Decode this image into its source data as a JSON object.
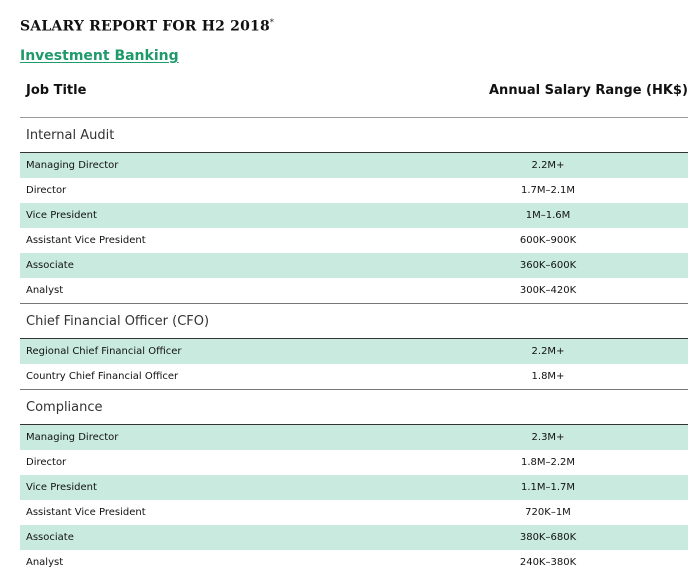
{
  "report": {
    "title": "SALARY REPORT FOR H2 2018",
    "title_mark": "*",
    "section": "Investment Banking"
  },
  "columns": {
    "job": "Job Title",
    "range": "Annual Salary Range (HK$)"
  },
  "colors": {
    "accent": "#1f9a6b",
    "row_shade": "#c9ebdf"
  },
  "groups": [
    {
      "name": "Internal Audit",
      "rows": [
        {
          "title": "Managing Director",
          "range": "2.2M+"
        },
        {
          "title": "Director",
          "range": "1.7M–2.1M"
        },
        {
          "title": "Vice President",
          "range": "1M–1.6M"
        },
        {
          "title": "Assistant Vice President",
          "range": "600K–900K"
        },
        {
          "title": "Associate",
          "range": "360K–600K"
        },
        {
          "title": "Analyst",
          "range": "300K–420K"
        }
      ]
    },
    {
      "name": "Chief Financial Officer (CFO)",
      "rows": [
        {
          "title": "Regional Chief Financial Officer",
          "range": "2.2M+"
        },
        {
          "title": "Country Chief Financial Officer",
          "range": "1.8M+"
        }
      ]
    },
    {
      "name": "Compliance",
      "rows": [
        {
          "title": "Managing Director",
          "range": "2.3M+"
        },
        {
          "title": "Director",
          "range": "1.8M–2.2M"
        },
        {
          "title": "Vice President",
          "range": "1.1M–1.7M"
        },
        {
          "title": "Assistant Vice President",
          "range": "720K–1M"
        },
        {
          "title": "Associate",
          "range": "380K–680K"
        },
        {
          "title": "Analyst",
          "range": "240K–380K"
        }
      ]
    }
  ]
}
